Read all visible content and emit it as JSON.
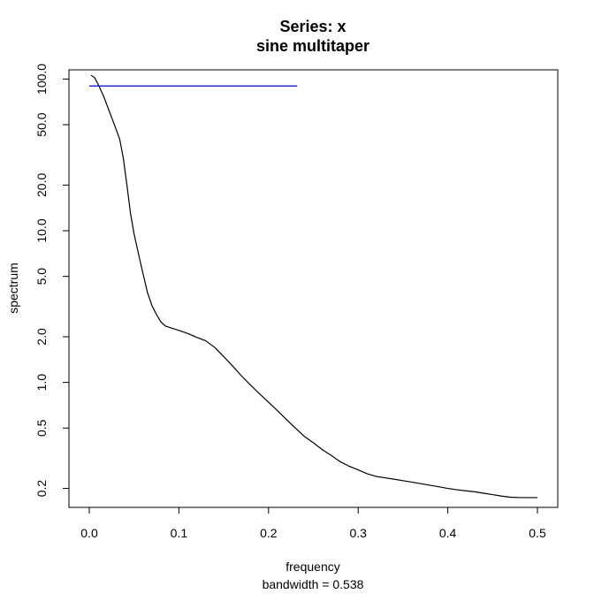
{
  "chart_data": {
    "type": "line",
    "title": "Series: x",
    "subtitle": "sine multitaper",
    "xlabel": "frequency",
    "x_sublabel": "bandwidth = 0.538",
    "ylabel": "spectrum",
    "xlim": [
      0,
      0.5
    ],
    "ylim": [
      0.15,
      115
    ],
    "y_scale": "log",
    "x_ticks": [
      0.0,
      0.1,
      0.2,
      0.3,
      0.4,
      0.5
    ],
    "x_tick_labels": [
      "0.0",
      "0.1",
      "0.2",
      "0.3",
      "0.4",
      "0.5"
    ],
    "y_ticks": [
      0.2,
      0.5,
      1.0,
      2.0,
      5.0,
      10.0,
      20.0,
      50.0,
      100.0
    ],
    "y_tick_labels": [
      "0.2",
      "0.5",
      "1.0",
      "2.0",
      "5.0",
      "10.0",
      "20.0",
      "50.0",
      "100.0"
    ],
    "grid": false,
    "series": [
      {
        "color": "#000000",
        "x": [
          0.002,
          0.006,
          0.01,
          0.016,
          0.022,
          0.028,
          0.034,
          0.038,
          0.042,
          0.046,
          0.05,
          0.055,
          0.06,
          0.065,
          0.07,
          0.075,
          0.08,
          0.085,
          0.09,
          0.1,
          0.11,
          0.12,
          0.13,
          0.14,
          0.15,
          0.16,
          0.17,
          0.18,
          0.19,
          0.2,
          0.21,
          0.22,
          0.23,
          0.24,
          0.25,
          0.26,
          0.27,
          0.28,
          0.29,
          0.3,
          0.31,
          0.32,
          0.33,
          0.34,
          0.35,
          0.36,
          0.37,
          0.38,
          0.39,
          0.4,
          0.41,
          0.42,
          0.43,
          0.44,
          0.45,
          0.46,
          0.47,
          0.48,
          0.49,
          0.5
        ],
        "y": [
          106,
          102,
          92,
          77,
          62,
          50,
          40,
          30,
          20,
          13,
          9.5,
          7.0,
          5.2,
          3.9,
          3.2,
          2.8,
          2.5,
          2.35,
          2.3,
          2.2,
          2.1,
          1.98,
          1.88,
          1.7,
          1.48,
          1.28,
          1.1,
          0.96,
          0.84,
          0.74,
          0.65,
          0.57,
          0.5,
          0.44,
          0.4,
          0.36,
          0.33,
          0.3,
          0.28,
          0.265,
          0.25,
          0.24,
          0.235,
          0.23,
          0.225,
          0.22,
          0.215,
          0.21,
          0.205,
          0.2,
          0.196,
          0.193,
          0.19,
          0.186,
          0.182,
          0.178,
          0.175,
          0.174,
          0.174,
          0.174
        ]
      },
      {
        "color": "#0000cc",
        "x": [
          0.0,
          0.232
        ],
        "y": [
          90,
          90
        ]
      }
    ]
  }
}
